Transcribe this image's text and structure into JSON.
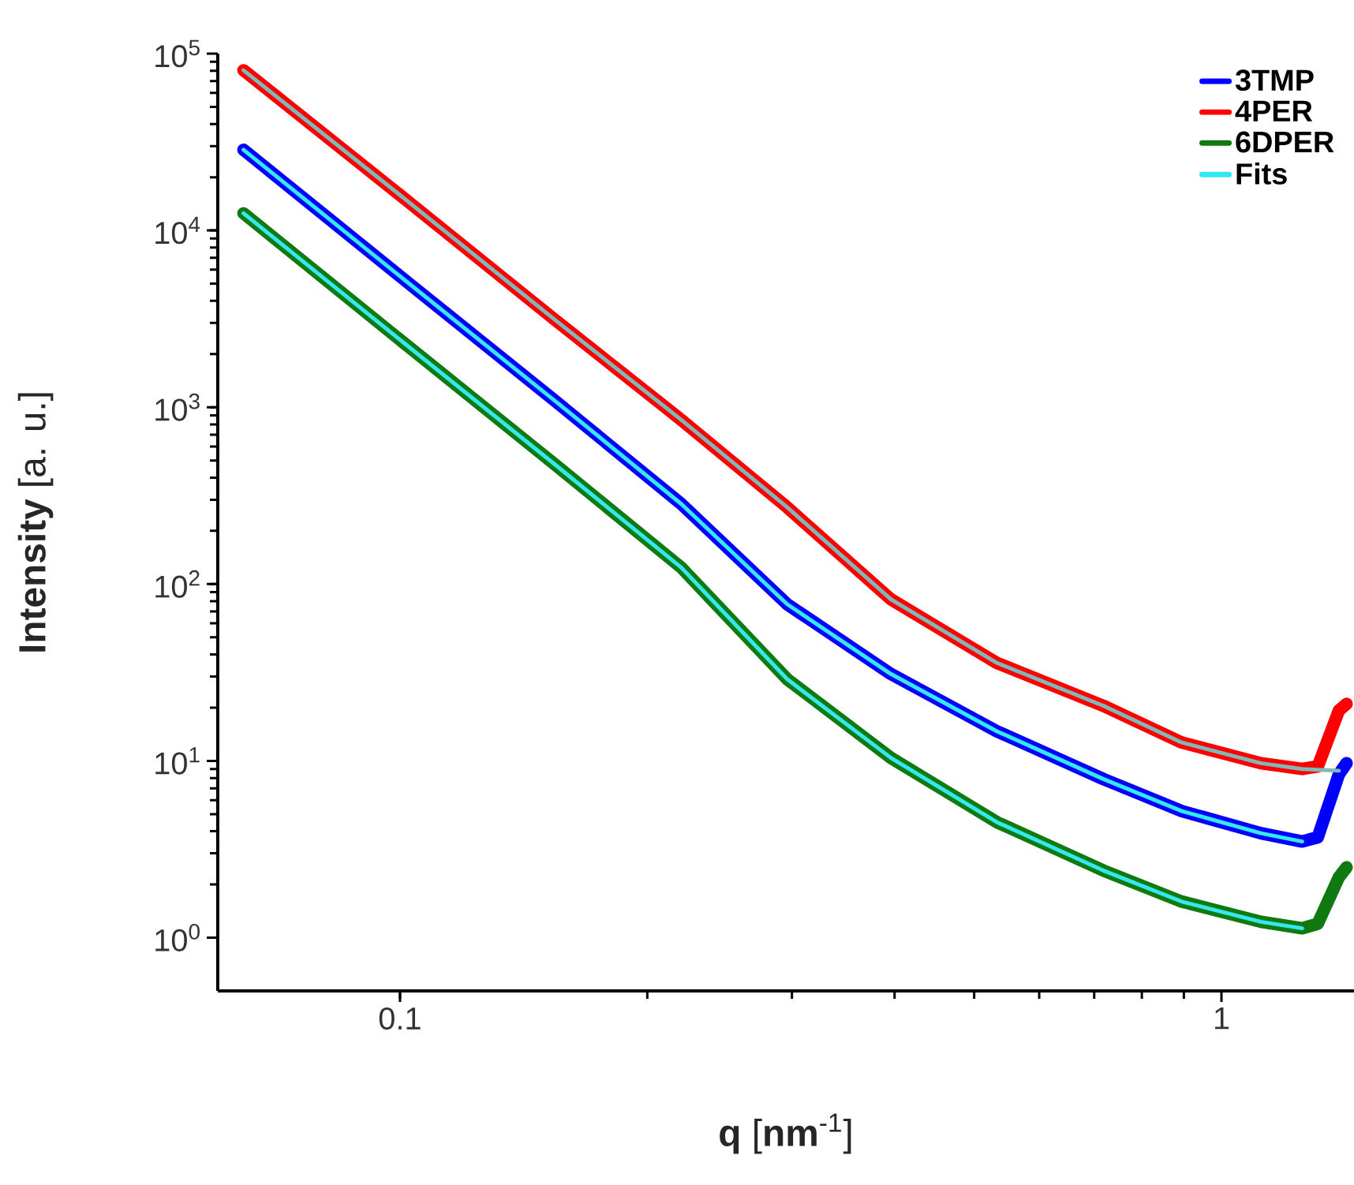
{
  "chart_data": {
    "type": "line",
    "xlabel": "**q** [**nm**$^{-1}$]",
    "ylabel": "**Intensity** [a. u.]",
    "log": "xy",
    "xlim": [
      0.06,
      1.45
    ],
    "ylim": [
      0.5,
      100000
    ],
    "xticks": [
      0.1,
      1
    ],
    "yticks": [
      {
        "value": 1,
        "label": "10$^{0}$"
      },
      {
        "value": 10,
        "label": "10$^{1}$"
      },
      {
        "value": 100,
        "label": "10$^{2}$"
      },
      {
        "value": 1000,
        "label": "10$^{3}$"
      },
      {
        "value": 10000,
        "label": "10$^{4}$"
      },
      {
        "value": 100000,
        "label": "10$^{5}$"
      }
    ],
    "legend": "top right",
    "line_style": "solid",
    "series": [
      {
        "name": "3TMP",
        "color": "#0000ff",
        "x": [
          0.0645,
          0.0991,
          0.1543,
          0.22,
          0.296,
          0.396,
          0.533,
          0.718,
          0.895,
          1.117,
          1.254,
          1.31,
          1.39,
          1.42
        ],
        "values": [
          28600,
          5700,
          1090,
          284,
          77,
          31,
          14.7,
          7.9,
          5.2,
          3.9,
          3.5,
          3.7,
          8.4,
          9.7
        ]
      },
      {
        "name": "4PER",
        "color": "#ff0000",
        "x": [
          0.0645,
          0.0991,
          0.1543,
          0.22,
          0.296,
          0.396,
          0.533,
          0.718,
          0.895,
          1.117,
          1.254,
          1.31,
          1.39,
          1.42
        ],
        "values": [
          80500,
          16400,
          3130,
          849,
          272,
          82,
          35.8,
          20.5,
          12.7,
          9.7,
          9,
          9.3,
          19.3,
          21
        ]
      },
      {
        "name": "6DPER",
        "color": "#107a10",
        "x": [
          0.0645,
          0.0991,
          0.1543,
          0.22,
          0.296,
          0.396,
          0.533,
          0.718,
          0.895,
          1.117,
          1.254,
          1.31,
          1.39,
          1.42
        ],
        "values": [
          12500,
          2490,
          476,
          124,
          29,
          10.4,
          4.5,
          2.4,
          1.6,
          1.23,
          1.13,
          1.2,
          2.2,
          2.5
        ]
      },
      {
        "name": "Fits",
        "color": "#33e8ee",
        "x": [
          0.0645,
          0.0991,
          0.1543,
          0.22,
          0.296,
          0.396,
          0.533,
          0.718,
          0.895,
          1.117,
          1.254
        ],
        "values": [
          28600,
          5700,
          1090,
          284,
          77,
          31,
          14.7,
          7.9,
          5.2,
          3.9,
          3.5
        ]
      },
      {
        "color": "#80b8b8",
        "x": [
          0.0645,
          0.0991,
          0.1543,
          0.22,
          0.296,
          0.396,
          0.533,
          0.718,
          0.895,
          1.117,
          1.254,
          1.39
        ],
        "values": [
          80500,
          16400,
          3130,
          849,
          272,
          82,
          35.8,
          20.5,
          12.7,
          9.7,
          9,
          8.8
        ]
      },
      {
        "color": "#33e8ee",
        "x": [
          0.0645,
          0.0991,
          0.1543,
          0.22,
          0.296,
          0.396,
          0.533,
          0.718,
          0.895,
          1.117,
          1.254
        ],
        "values": [
          12500,
          2490,
          476,
          124,
          29,
          10.4,
          4.5,
          2.4,
          1.6,
          1.23,
          1.13
        ]
      }
    ]
  }
}
